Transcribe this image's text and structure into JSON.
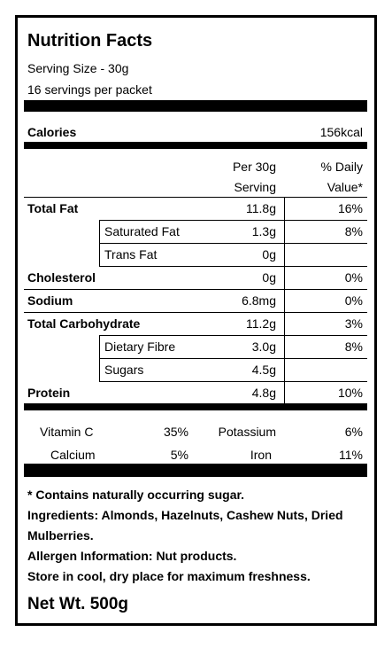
{
  "header": {
    "title": "Nutrition Facts",
    "serving_size": "Serving Size - 30g",
    "servings": "16 servings per packet"
  },
  "calories": {
    "label": "Calories",
    "value": "156kcal"
  },
  "table": {
    "columns": [
      [
        "Per 30g",
        "Serving"
      ],
      [
        "% Daily",
        "Value*"
      ]
    ],
    "rows": [
      {
        "name": "Total Fat",
        "amount": "11.8g",
        "dv": "16%",
        "sub": [
          {
            "name": "Saturated Fat",
            "amount": "1.3g",
            "dv": "8%"
          },
          {
            "name": "Trans Fat",
            "amount": "0g"
          }
        ]
      },
      {
        "name": "Cholesterol",
        "amount": "0g",
        "dv": "0%"
      },
      {
        "name": "Sodium",
        "amount": "6.8mg",
        "dv": "0%"
      },
      {
        "name": "Total Carbohydrate",
        "amount": "11.2g",
        "dv": "3%",
        "sub": [
          {
            "name": "Dietary Fibre",
            "amount": "3.0g",
            "dv": "8%"
          },
          {
            "name": "Sugars",
            "amount": "4.5g"
          }
        ]
      },
      {
        "name": "Protein",
        "amount": "4.8g",
        "dv": "10%"
      }
    ]
  },
  "vitamins": [
    [
      "Vitamin C",
      "35%",
      "Potassium",
      "6%"
    ],
    [
      "Calcium",
      "5%",
      "Iron",
      "11%"
    ]
  ],
  "footnotes": [
    "* Contains naturally occurring sugar.",
    "Ingredients: Almonds, Hazelnuts, Cashew Nuts, Dried Mulberries.",
    "Allergen Information: Nut products.",
    "Store in cool, dry place for maximum freshness."
  ],
  "net_weight": "Net Wt. 500g"
}
